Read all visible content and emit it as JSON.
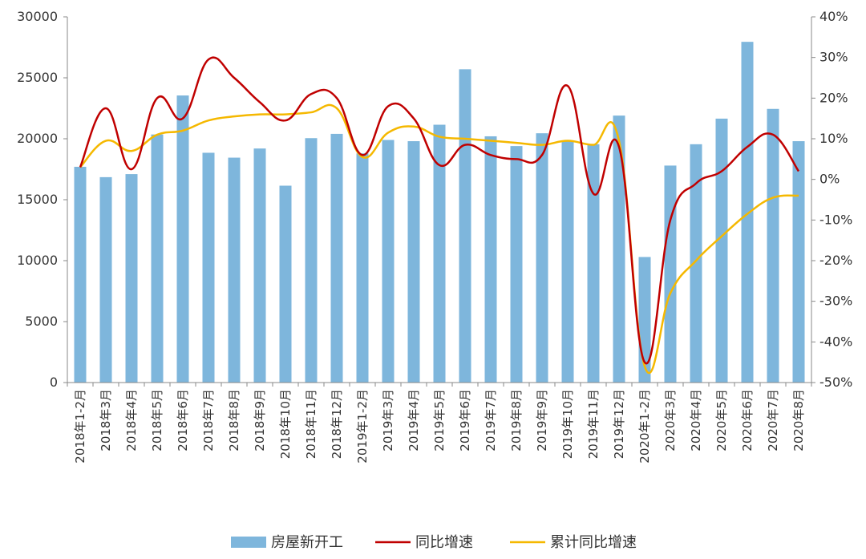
{
  "chart_data": {
    "type": "bar+line",
    "categories": [
      "2018年1-2月",
      "2018年3月",
      "2018年4月",
      "2018年5月",
      "2018年6月",
      "2018年7月",
      "2018年8月",
      "2018年9月",
      "2018年10月",
      "2018年11月",
      "2018年12月",
      "2019年1-2月",
      "2019年3月",
      "2019年4月",
      "2019年5月",
      "2019年6月",
      "2019年7月",
      "2019年8月",
      "2019年9月",
      "2019年10月",
      "2019年11月",
      "2019年12月",
      "2020年1-2月",
      "2020年3月",
      "2020年4月",
      "2020年5月",
      "2020年6月",
      "2020年7月",
      "2020年8月"
    ],
    "series": [
      {
        "name": "房屋新开工",
        "type": "bar",
        "axis": "left",
        "color": "#7EB6DC",
        "values": [
          17700,
          16850,
          17100,
          20350,
          23550,
          18850,
          18450,
          19200,
          16150,
          20050,
          20400,
          18800,
          19900,
          19800,
          21150,
          25700,
          20200,
          19400,
          20450,
          19850,
          19550,
          21900,
          10300,
          17800,
          19550,
          21650,
          27950,
          22450,
          19800
        ]
      },
      {
        "name": "同比增速",
        "type": "line",
        "axis": "right",
        "color": "#C00000",
        "values": [
          3,
          17.5,
          2.5,
          20,
          15,
          29.5,
          25,
          19,
          14.5,
          21,
          20,
          6,
          18,
          15,
          3.5,
          8.5,
          6,
          5,
          6,
          23,
          -3.5,
          8,
          -45,
          -10,
          -1,
          2,
          8,
          11,
          2
        ]
      },
      {
        "name": "累计同比增速",
        "type": "line",
        "axis": "right",
        "color": "#F5B800",
        "values": [
          3,
          9.5,
          7,
          11,
          12,
          14.5,
          15.5,
          16,
          16,
          16.5,
          17.5,
          5.5,
          11.5,
          13,
          10.5,
          10,
          9.5,
          9,
          8.5,
          9.5,
          8.5,
          9.5,
          -46,
          -28,
          -20,
          -14,
          -8.5,
          -4.5,
          -4
        ]
      }
    ],
    "y_left": {
      "min": 0,
      "max": 30000,
      "ticks": [
        "0",
        "5000",
        "10000",
        "15000",
        "20000",
        "25000",
        "30000"
      ]
    },
    "y_right": {
      "min": -50,
      "max": 40,
      "ticks": [
        "-50%",
        "-40%",
        "-30%",
        "-20%",
        "-10%",
        "0%",
        "10%",
        "20%",
        "30%",
        "40%"
      ]
    },
    "legend_position": "bottom-center",
    "grid": false
  }
}
